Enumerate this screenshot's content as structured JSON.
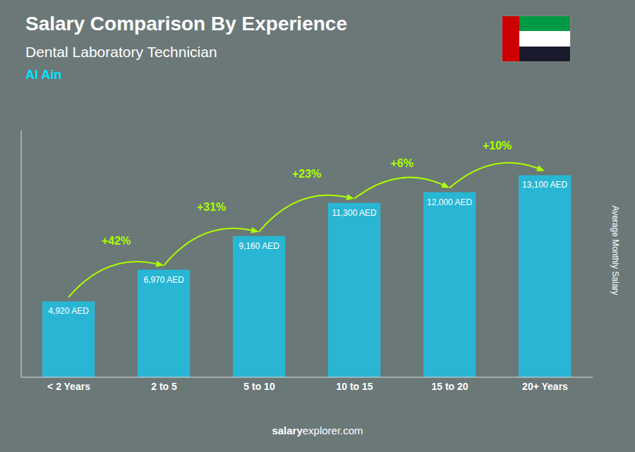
{
  "chart_data": {
    "type": "bar",
    "title": "Salary Comparison By Experience",
    "subtitle": [
      "Dental Laboratory Technician",
      "Al Ain"
    ],
    "y_label": "Average Monthly Salary",
    "categories": [
      "< 2 Years",
      "2 to 5",
      "5 to 10",
      "10 to 15",
      "15 to 20",
      "20+ Years"
    ],
    "values": [
      4920,
      6970,
      9160,
      11300,
      12000,
      13100
    ],
    "value_labels": [
      "4,920 AED",
      "6,970 AED",
      "9,160 AED",
      "11,300 AED",
      "12,000 AED",
      "13,100 AED"
    ],
    "data_labels": true,
    "color": "#29b6d4",
    "ylim": [
      0,
      16000
    ],
    "tick_labels": "x",
    "grid": false,
    "annotations": [
      {
        "text": "+42%",
        "from": "< 2 Years",
        "to": "2 to 5",
        "color": "#aaff00"
      },
      {
        "text": "+31%",
        "from": "2 to 5",
        "to": "5 to 10",
        "color": "#aaff00"
      },
      {
        "text": "+23%",
        "from": "5 to 10",
        "to": "10 to 15",
        "color": "#aaff00"
      },
      {
        "text": "+6%",
        "from": "10 to 15",
        "to": "15 to 20",
        "color": "#aaff00"
      },
      {
        "text": "+10%",
        "from": "15 to 20",
        "to": "20+ Years",
        "color": "#aaff00"
      }
    ],
    "footer": [
      "salary",
      "explorer.com"
    ]
  }
}
